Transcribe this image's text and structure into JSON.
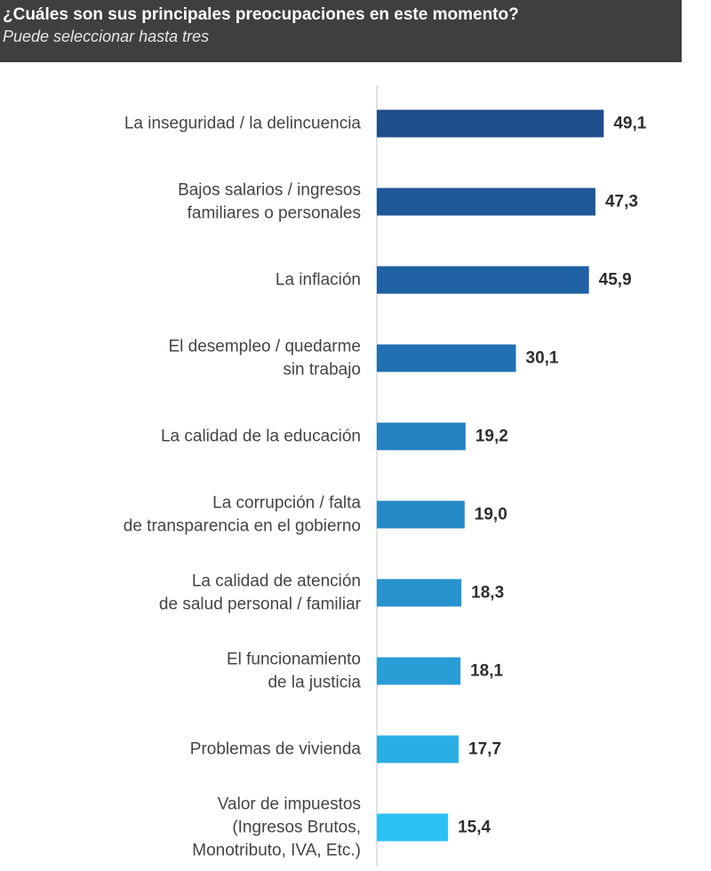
{
  "header": {
    "title": "¿Cuáles son sus principales preocupaciones en este momento?",
    "subtitle": "Puede seleccionar hasta tres"
  },
  "chart_data": {
    "type": "bar",
    "orientation": "horizontal",
    "title": "¿Cuáles son sus principales preocupaciones en este momento?",
    "subtitle": "Puede seleccionar hasta tres",
    "xlabel": "",
    "ylabel": "",
    "xlim": [
      0,
      55
    ],
    "grid": false,
    "categories": [
      [
        "La inseguridad / la delincuencia"
      ],
      [
        "Bajos salarios / ingresos",
        "familiares o personales"
      ],
      [
        "La inflación"
      ],
      [
        "El desempleo / quedarme",
        "sin trabajo"
      ],
      [
        "La calidad de la educación"
      ],
      [
        "La corrupción / falta",
        "de transparencia en el gobierno"
      ],
      [
        "La calidad de atención",
        "de salud personal / familiar"
      ],
      [
        "El funcionamiento",
        "de la justicia"
      ],
      [
        "Problemas de vivienda"
      ],
      [
        "Valor de impuestos",
        "(Ingresos Brutos,",
        "Monotributo, IVA, Etc.)"
      ]
    ],
    "values": [
      49.1,
      47.3,
      45.9,
      30.1,
      19.2,
      19.0,
      18.3,
      18.1,
      17.7,
      15.4
    ],
    "value_labels": [
      "49,1",
      "47,3",
      "45,9",
      "30,1",
      "19,2",
      "19,0",
      "18,3",
      "18,1",
      "17,7",
      "15,4"
    ],
    "bar_colors": [
      "#1f4e8c",
      "#1f5797",
      "#1f61a3",
      "#2170b2",
      "#2380c1",
      "#2589c8",
      "#2793cf",
      "#299dd6",
      "#2aaee3",
      "#2bc2f2"
    ],
    "axis_color": "#d9d9d9"
  }
}
